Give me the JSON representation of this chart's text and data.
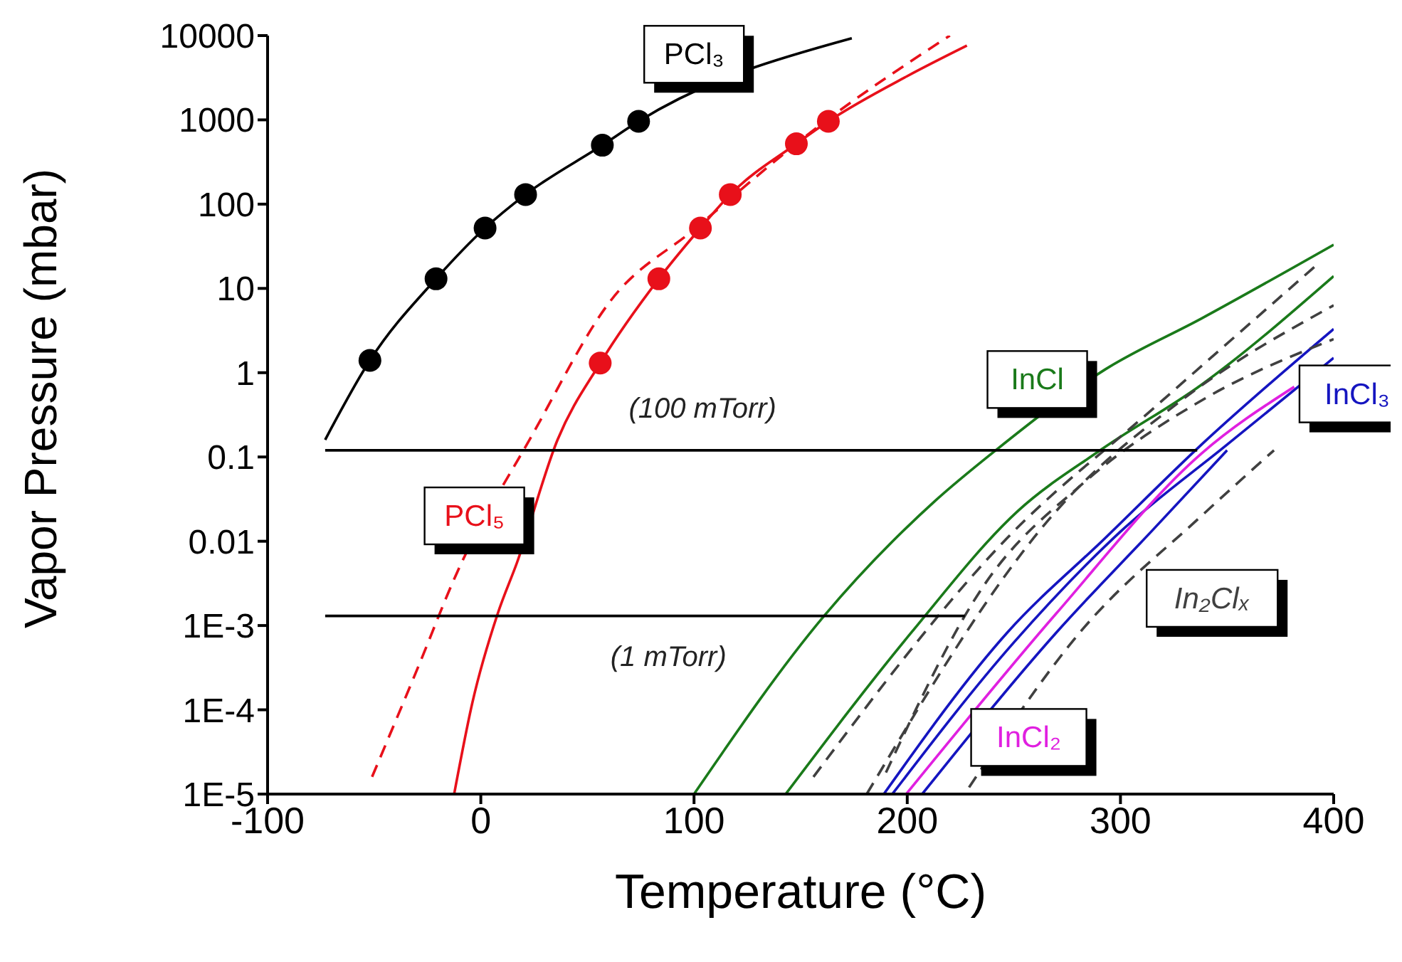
{
  "chart_data": {
    "type": "line",
    "xlabel": "Temperature (°C)",
    "ylabel": "Vapor Pressure (mbar)",
    "log": "y",
    "grid": false,
    "marker": "none",
    "xlim": [
      -100,
      400
    ],
    "xticks": [
      -100,
      0,
      100,
      200,
      300,
      400
    ],
    "ylim": [
      1e-05,
      10000
    ],
    "yticks": [
      10000,
      1000,
      100,
      10,
      1,
      0.1,
      0.01,
      {
        "value": 0.001,
        "label": "1E-3"
      },
      {
        "value": 0.0001,
        "label": "1E-4"
      },
      {
        "value": 1e-05,
        "label": "1E-5"
      }
    ],
    "annotations": [
      {
        "text": "(100 mTorr)",
        "x": 104,
        "y": 0.12
      },
      {
        "text": "(1 mTorr)",
        "x": 88,
        "y": 0.0013
      }
    ],
    "series": [
      {
        "name": "PCl₃",
        "color": "#000000",
        "x": [
          -73,
          -52,
          -21,
          2,
          21,
          57,
          74,
          174
        ],
        "values": [
          0.16,
          1.4,
          13,
          52,
          130,
          500,
          960,
          9300
        ]
      },
      {
        "type": "scatter",
        "marker": "circle",
        "color": "#000000",
        "x": [
          -52,
          -21,
          2,
          21,
          57,
          74
        ],
        "values": [
          1.4,
          13,
          52,
          130,
          500,
          960
        ]
      },
      {
        "name": "PCl₅",
        "color": "#e8101a",
        "x": [
          -12.5,
          -4,
          8,
          17,
          36,
          56,
          83.5,
          103,
          117,
          148,
          163,
          200,
          228
        ],
        "values": [
          1e-05,
          0.00012,
          0.0014,
          0.0056,
          0.16,
          1.3,
          13,
          52,
          130,
          520,
          960,
          3300,
          7600
        ]
      },
      {
        "type": "line",
        "line_style": "dashed",
        "color": "#e8101a",
        "x": [
          -51,
          -29,
          -12,
          24,
          61,
          100,
          160,
          220
        ],
        "values": [
          1.6e-05,
          0.00034,
          0.0038,
          0.18,
          7.2,
          50,
          900,
          10000
        ]
      },
      {
        "type": "scatter",
        "marker": "circle",
        "color": "#e8101a",
        "x": [
          56,
          83.5,
          103,
          117,
          148,
          163
        ],
        "values": [
          1.3,
          13,
          52,
          130,
          520,
          960
        ]
      },
      {
        "name": "InCl",
        "type": "line",
        "color": "#1a7a1a",
        "x": [
          100,
          161,
          213,
          241.5,
          293,
          338,
          400
        ],
        "values": [
          1e-05,
          0.0013,
          0.03,
          0.12,
          1.1,
          4.4,
          33
        ]
      },
      {
        "type": "line",
        "color": "#1a7a1a",
        "x": [
          143,
          202,
          252,
          290.5,
          338,
          400
        ],
        "values": [
          1e-05,
          0.00083,
          0.023,
          0.12,
          0.72,
          14
        ]
      },
      {
        "name": "InCl₃",
        "type": "line",
        "color": "#1515c0",
        "x": [
          189,
          247,
          293,
          338,
          400
        ],
        "values": [
          1e-05,
          0.00083,
          0.011,
          0.14,
          3.3
        ]
      },
      {
        "type": "line",
        "color": "#1515c0",
        "x": [
          193,
          250,
          300,
          350,
          400
        ],
        "values": [
          1e-05,
          0.00063,
          0.013,
          0.14,
          1.5
        ]
      },
      {
        "type": "line",
        "color": "#1515c0",
        "x": [
          207,
          270,
          315.6,
          350
        ],
        "values": [
          1e-05,
          0.00083,
          0.014,
          0.12
        ]
      },
      {
        "name": "InCl₂",
        "type": "line",
        "color": "#e020e0",
        "x": [
          199.5,
          270,
          338,
          381.5
        ],
        "values": [
          1e-05,
          0.0014,
          0.11,
          0.68
        ]
      },
      {
        "name": "In₂Clₓ",
        "type": "line",
        "line_style": "dashed",
        "color": "#404040",
        "x": [
          156,
          247,
          315.6,
          391
        ],
        "values": [
          1.6e-05,
          0.011,
          0.38,
          18
        ]
      },
      {
        "type": "line",
        "line_style": "dashed",
        "color": "#404040",
        "x": [
          181,
          270,
          330,
          400
        ],
        "values": [
          1e-05,
          0.023,
          0.5,
          6.3
        ]
      },
      {
        "type": "line",
        "line_style": "dashed",
        "color": "#404040",
        "x": [
          229,
          281,
          338,
          372
        ],
        "values": [
          1.2e-05,
          0.00083,
          0.02,
          0.12
        ]
      },
      {
        "type": "line",
        "line_style": "dashed",
        "color": "#404040",
        "x": [
          190,
          236,
          283,
          340,
          400
        ],
        "values": [
          1.8e-05,
          0.003,
          0.05,
          0.5,
          2.5
        ]
      },
      {
        "type": "line",
        "color": "#000000",
        "x": [
          -73,
          336
        ],
        "values": [
          0.12,
          0.12
        ]
      },
      {
        "type": "line",
        "color": "#000000",
        "x": [
          -73,
          227
        ],
        "values": [
          0.0013,
          0.0013
        ]
      }
    ]
  }
}
